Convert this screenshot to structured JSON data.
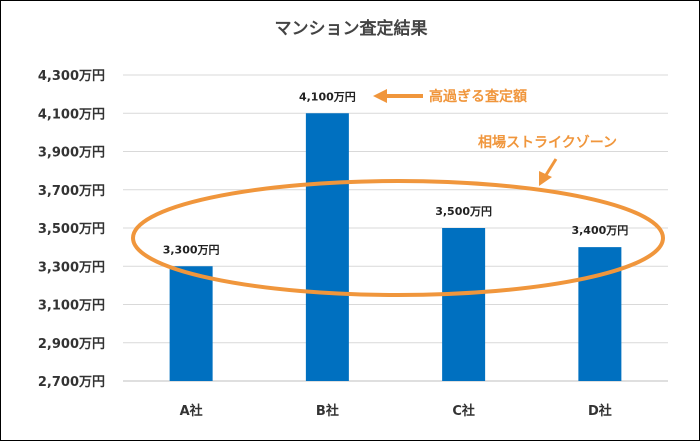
{
  "chart_data": {
    "type": "bar",
    "title": "マンション査定結果",
    "categories": [
      "A社",
      "B社",
      "C社",
      "D社"
    ],
    "values": [
      3300,
      4100,
      3500,
      3400
    ],
    "value_labels": [
      "3,300万円",
      "4,100万円",
      "3,500万円",
      "3,400万円"
    ],
    "ylim": [
      2700,
      4300
    ],
    "yticks": [
      2700,
      2900,
      3100,
      3300,
      3500,
      3700,
      3900,
      4100,
      4300
    ],
    "ytick_labels": [
      "2,700万円",
      "2,900万円",
      "3,100万円",
      "3,300万円",
      "3,500万円",
      "3,700万円",
      "3,900万円",
      "4,100万円",
      "4,300万円"
    ],
    "grid": true,
    "bar_color": "#0070c0",
    "annotations": [
      {
        "text": "高過ぎる査定額",
        "color": "#f0963c",
        "target": "B社"
      },
      {
        "text": "相場ストライクゾーン",
        "color": "#f0963c",
        "target": "A社, C社, D社"
      }
    ]
  }
}
